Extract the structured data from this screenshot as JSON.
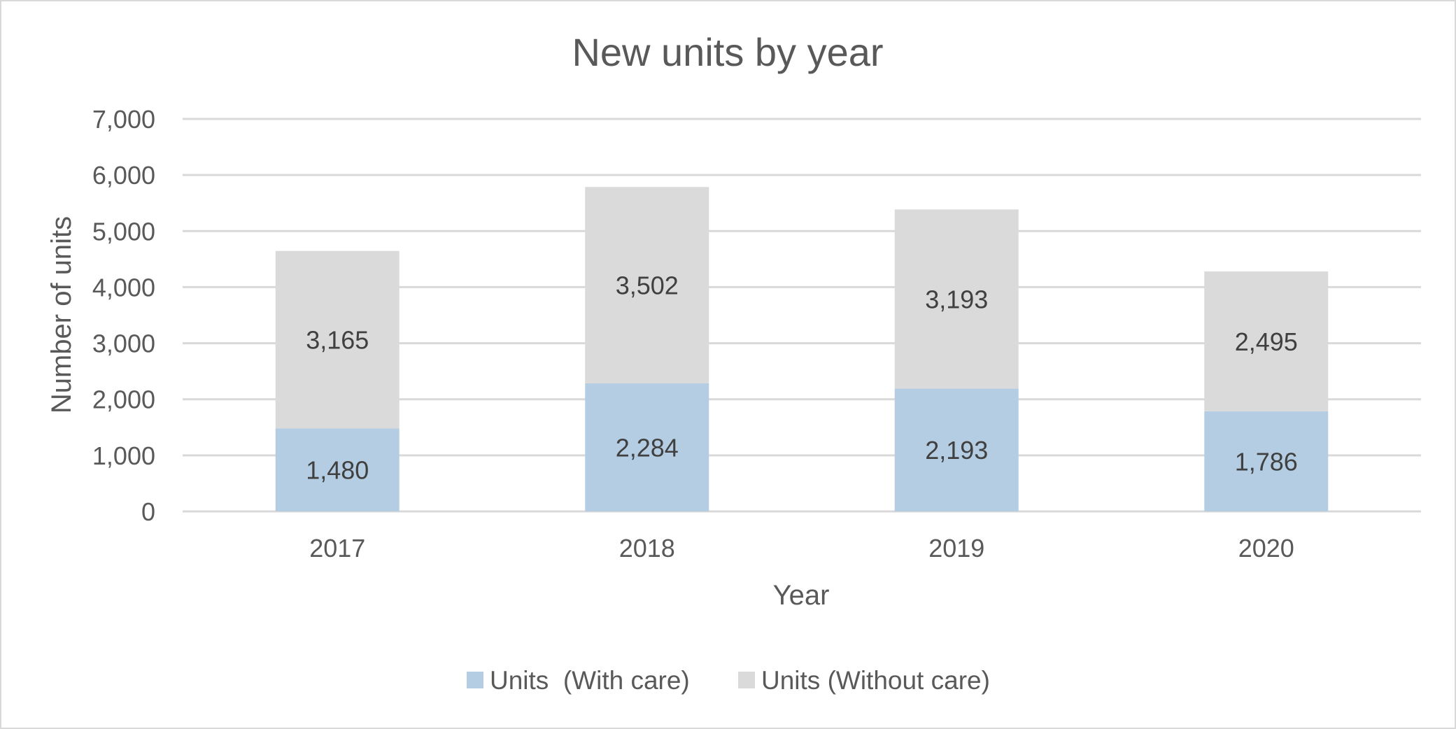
{
  "chart_data": {
    "type": "bar",
    "stacked": true,
    "title": "New units by year",
    "xlabel": "Year",
    "ylabel": "Number of units",
    "categories": [
      "2017",
      "2018",
      "2019",
      "2020"
    ],
    "series": [
      {
        "name": "Units  (With care)",
        "values": [
          1480,
          2284,
          2193,
          1786
        ],
        "labels": [
          "1,480",
          "2,284",
          "2,193",
          "1,786"
        ],
        "color": "#b4cde2"
      },
      {
        "name": "Units (Without care)",
        "values": [
          3165,
          3502,
          3193,
          2495
        ],
        "labels": [
          "3,165",
          "3,502",
          "3,193",
          "2,495"
        ],
        "color": "#dadadb"
      }
    ],
    "ylim": [
      0,
      7000
    ],
    "yticks": [
      0,
      1000,
      2000,
      3000,
      4000,
      5000,
      6000,
      7000
    ],
    "ytick_labels": [
      "0",
      "1,000",
      "2,000",
      "3,000",
      "4,000",
      "5,000",
      "6,000",
      "7,000"
    ],
    "grid": true,
    "legend_position": "bottom",
    "gridline_color": "#d9d9d9"
  }
}
